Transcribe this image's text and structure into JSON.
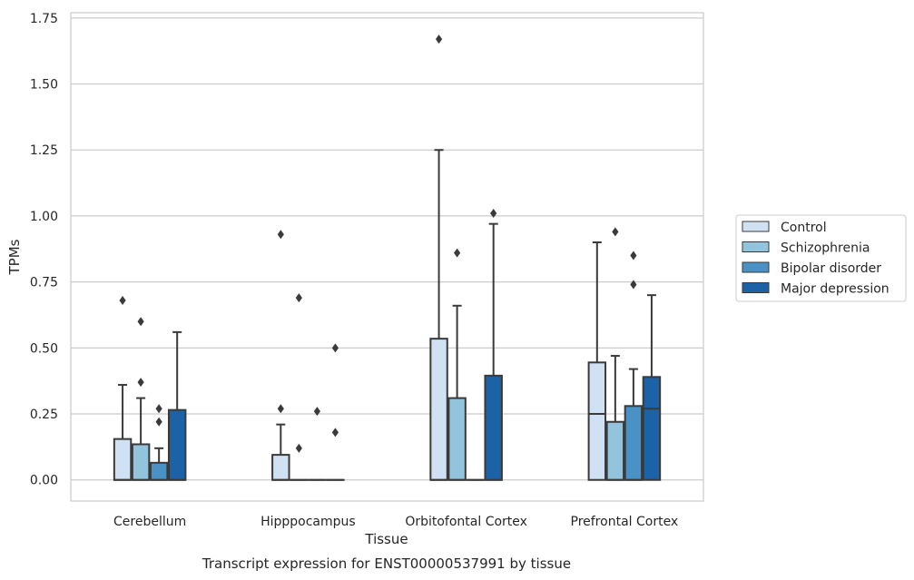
{
  "chart_data": {
    "type": "box",
    "title": "Transcript expression for ENST00000537991 by tissue",
    "xlabel": "Tissue",
    "ylabel": "TPMs",
    "ylim": [
      -0.08,
      1.77
    ],
    "yticks": [
      "0.00",
      "0.25",
      "0.50",
      "0.75",
      "1.00",
      "1.25",
      "1.50",
      "1.75"
    ],
    "categories": [
      "Cerebellum",
      "Hipppocampus",
      "Orbitofontal Cortex",
      "Prefrontal Cortex"
    ],
    "grid": "horizontal",
    "legend_position": "right",
    "series": [
      {
        "name": "Control",
        "color": "#cfe1f2",
        "boxes": [
          {
            "q1": 0,
            "median": 0,
            "q3": 0.155,
            "whisker_low": 0,
            "whisker_high": 0.36,
            "outliers": [
              0.68
            ]
          },
          {
            "q1": 0,
            "median": 0,
            "q3": 0.095,
            "whisker_low": 0,
            "whisker_high": 0.21,
            "outliers": [
              0.27,
              0.93
            ]
          },
          {
            "q1": 0,
            "median": 0,
            "q3": 0.535,
            "whisker_low": 0,
            "whisker_high": 1.25,
            "outliers": [
              1.67
            ]
          },
          {
            "q1": 0,
            "median": 0.25,
            "q3": 0.445,
            "whisker_low": 0,
            "whisker_high": 0.9,
            "outliers": []
          }
        ]
      },
      {
        "name": "Schizophrenia",
        "color": "#93c4de",
        "boxes": [
          {
            "q1": 0,
            "median": 0,
            "q3": 0.135,
            "whisker_low": 0,
            "whisker_high": 0.31,
            "outliers": [
              0.37,
              0.6
            ]
          },
          {
            "q1": 0,
            "median": 0,
            "q3": 0,
            "whisker_low": 0,
            "whisker_high": 0,
            "outliers": [
              0.12,
              0.69
            ]
          },
          {
            "q1": 0,
            "median": 0,
            "q3": 0.31,
            "whisker_low": 0,
            "whisker_high": 0.66,
            "outliers": [
              0.86
            ]
          },
          {
            "q1": 0,
            "median": 0,
            "q3": 0.22,
            "whisker_low": 0,
            "whisker_high": 0.47,
            "outliers": [
              0.94
            ]
          }
        ]
      },
      {
        "name": "Bipolar disorder",
        "color": "#4a91c5",
        "boxes": [
          {
            "q1": 0,
            "median": 0,
            "q3": 0.065,
            "whisker_low": 0,
            "whisker_high": 0.12,
            "outliers": [
              0.22,
              0.27
            ]
          },
          {
            "q1": 0,
            "median": 0,
            "q3": 0,
            "whisker_low": 0,
            "whisker_high": 0,
            "outliers": [
              0.26
            ]
          },
          {
            "q1": 0,
            "median": 0,
            "q3": 0,
            "whisker_low": 0,
            "whisker_high": 0,
            "outliers": []
          },
          {
            "q1": 0,
            "median": 0,
            "q3": 0.28,
            "whisker_low": 0,
            "whisker_high": 0.42,
            "outliers": [
              0.74,
              0.85
            ]
          }
        ]
      },
      {
        "name": "Major depression",
        "color": "#1c62a6",
        "boxes": [
          {
            "q1": 0,
            "median": 0,
            "q3": 0.265,
            "whisker_low": 0,
            "whisker_high": 0.56,
            "outliers": []
          },
          {
            "q1": 0,
            "median": 0,
            "q3": 0,
            "whisker_low": 0,
            "whisker_high": 0,
            "outliers": [
              0.18,
              0.5
            ]
          },
          {
            "q1": 0,
            "median": 0,
            "q3": 0.395,
            "whisker_low": 0,
            "whisker_high": 0.97,
            "outliers": [
              1.01
            ]
          },
          {
            "q1": 0,
            "median": 0.27,
            "q3": 0.39,
            "whisker_low": 0,
            "whisker_high": 0.7,
            "outliers": []
          }
        ]
      }
    ]
  }
}
